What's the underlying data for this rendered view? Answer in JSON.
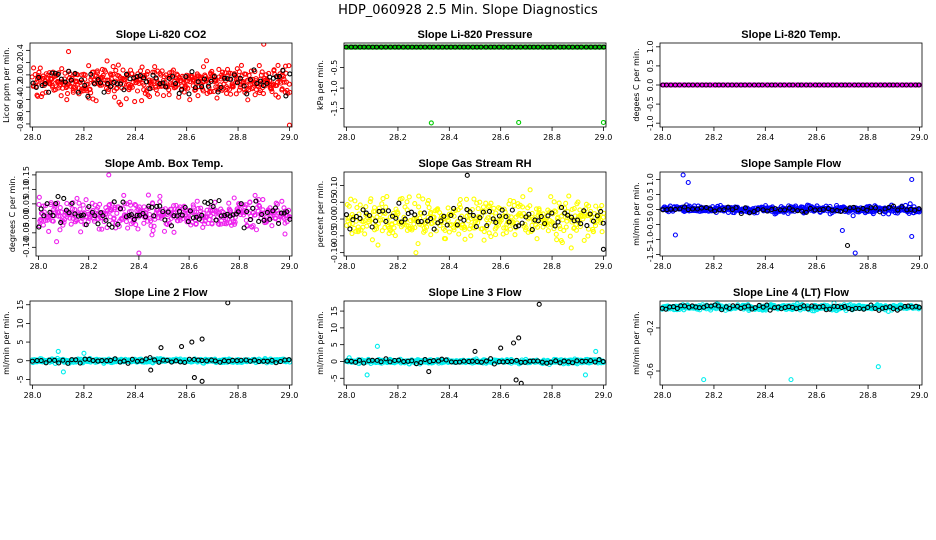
{
  "title": "HDP_060928  2.5 Min. Slope Diagnostics",
  "chart_data": [
    {
      "id": "co2",
      "type": "scatter",
      "title": "Slope Li-820 CO2",
      "ylabel": "Licor ppm per min.",
      "xlim": [
        27.99,
        29.01
      ],
      "ylim": [
        -0.85,
        0.52
      ],
      "xticks": [
        28.0,
        28.2,
        28.4,
        28.6,
        28.8,
        29.0
      ],
      "xtick_labels": [
        "28.0",
        "28.2",
        "28.4",
        "28.6",
        "28.8",
        "29.0"
      ],
      "yticks": [
        -0.8,
        -0.6,
        -0.4,
        -0.2,
        0.0,
        0.2,
        0.4
      ],
      "ytick_labels": [
        "-0.8",
        "-0.6",
        "-0.4",
        "-0.2",
        "0.0",
        "0.2",
        "0.4"
      ],
      "primary_color": "#ff0000",
      "secondary_color": "#000000",
      "x_start": 28.0,
      "x_end": 29.0,
      "primary_count": 480,
      "secondary_count": 80,
      "primary_center": -0.12,
      "primary_spread": 0.38,
      "secondary_center": -0.12,
      "secondary_spread": 0.3,
      "primary_outliers": [
        [
          28.14,
          0.38
        ],
        [
          29.0,
          -0.82
        ],
        [
          28.9,
          0.5
        ]
      ],
      "secondary_outliers": []
    },
    {
      "id": "pressure",
      "type": "scatter",
      "title": "Slope Li-820 Pressure",
      "ylabel": "kPa per min.",
      "xlim": [
        27.99,
        29.01
      ],
      "ylim": [
        -1.95,
        0.1
      ],
      "xticks": [
        28.0,
        28.2,
        28.4,
        28.6,
        28.8,
        29.0
      ],
      "xtick_labels": [
        "28.0",
        "28.2",
        "28.4",
        "28.6",
        "28.8",
        "29.0"
      ],
      "yticks": [
        -1.5,
        -1.0,
        -0.5
      ],
      "ytick_labels": [
        "-1.5",
        "-1.0",
        "-0.5"
      ],
      "primary_color": "#00cc00",
      "secondary_color": "#000000",
      "x_start": 28.0,
      "x_end": 29.0,
      "primary_count": 400,
      "secondary_count": 60,
      "primary_center": 0.0,
      "primary_spread": 0.0,
      "secondary_center": 0.0,
      "secondary_spread": 0.0,
      "primary_outliers": [
        [
          28.33,
          -1.85
        ],
        [
          28.67,
          -1.84
        ],
        [
          29.0,
          -1.84
        ]
      ],
      "secondary_outliers": []
    },
    {
      "id": "temp",
      "type": "scatter",
      "title": "Slope Li-820 Temp.",
      "ylabel": "degees C per min.",
      "xlim": [
        27.99,
        29.01
      ],
      "ylim": [
        -1.1,
        1.1
      ],
      "xticks": [
        28.0,
        28.2,
        28.4,
        28.6,
        28.8,
        29.0
      ],
      "xtick_labels": [
        "28.0",
        "28.2",
        "28.4",
        "28.6",
        "28.8",
        "29.0"
      ],
      "yticks": [
        -1.0,
        -0.5,
        0.0,
        0.5,
        1.0
      ],
      "ytick_labels": [
        "-1.0",
        "-0.5",
        "0.0",
        "0.5",
        "1.0"
      ],
      "primary_color": "#ff00ff",
      "secondary_color": "#000000",
      "x_start": 28.0,
      "x_end": 29.0,
      "primary_count": 400,
      "secondary_count": 60,
      "primary_center": 0.0,
      "primary_spread": 0.0,
      "secondary_center": 0.0,
      "secondary_spread": 0.0,
      "primary_outliers": [],
      "secondary_outliers": []
    },
    {
      "id": "ambbox",
      "type": "scatter",
      "title": "Slope Amb. Box Temp.",
      "ylabel": "degrees C per min.",
      "xlim": [
        27.99,
        29.01
      ],
      "ylim": [
        -0.13,
        0.16
      ],
      "xticks": [
        28.0,
        28.2,
        28.4,
        28.6,
        28.8,
        29.0
      ],
      "xtick_labels": [
        "28.0",
        "28.2",
        "28.4",
        "28.6",
        "28.8",
        "29.0"
      ],
      "yticks": [
        -0.1,
        -0.05,
        0.0,
        0.05,
        0.1,
        0.15
      ],
      "ytick_labels": [
        "-0.10",
        "-0.05",
        "0.00",
        "0.05",
        "0.10",
        "0.15"
      ],
      "primary_color": "#ee22ee",
      "secondary_color": "#000000",
      "x_start": 28.0,
      "x_end": 29.0,
      "primary_count": 420,
      "secondary_count": 90,
      "primary_center": 0.015,
      "primary_spread": 0.08,
      "secondary_center": 0.015,
      "secondary_spread": 0.07,
      "primary_outliers": [
        [
          28.28,
          0.15
        ],
        [
          28.4,
          -0.12
        ]
      ],
      "secondary_outliers": []
    },
    {
      "id": "rh",
      "type": "scatter",
      "title": "Slope Gas Stream RH",
      "ylabel": "percent per min.",
      "xlim": [
        27.99,
        29.01
      ],
      "ylim": [
        -0.11,
        0.14
      ],
      "xticks": [
        28.0,
        28.2,
        28.4,
        28.6,
        28.8,
        29.0
      ],
      "xtick_labels": [
        "28.0",
        "28.2",
        "28.4",
        "28.6",
        "28.8",
        "29.0"
      ],
      "yticks": [
        -0.1,
        -0.05,
        0.0,
        0.05,
        0.1
      ],
      "ytick_labels": [
        "-0.10",
        "-0.05",
        "0.00",
        "0.05",
        "0.10"
      ],
      "primary_color": "#ffff00",
      "secondary_color": "#000000",
      "x_start": 28.0,
      "x_end": 29.0,
      "primary_count": 420,
      "secondary_count": 80,
      "primary_center": 0.0,
      "primary_spread": 0.09,
      "secondary_center": 0.0,
      "secondary_spread": 0.07,
      "primary_outliers": [
        [
          28.27,
          -0.1
        ]
      ],
      "secondary_outliers": [
        [
          28.47,
          0.13
        ],
        [
          29.0,
          -0.09
        ]
      ]
    },
    {
      "id": "sampleflow",
      "type": "scatter",
      "title": "Slope Sample Flow",
      "ylabel": "ml/min per min.",
      "xlim": [
        27.99,
        29.01
      ],
      "ylim": [
        -1.55,
        1.25
      ],
      "xticks": [
        28.0,
        28.2,
        28.4,
        28.6,
        28.8,
        29.0
      ],
      "xtick_labels": [
        "28.0",
        "28.2",
        "28.4",
        "28.6",
        "28.8",
        "29.0"
      ],
      "yticks": [
        -1.5,
        -1.0,
        -0.5,
        0.0,
        0.5,
        1.0
      ],
      "ytick_labels": [
        "-1.5",
        "-1.0",
        "-0.5",
        "0.0",
        "0.5",
        "1.0"
      ],
      "primary_color": "#0000ff",
      "secondary_color": "#000000",
      "x_start": 28.0,
      "x_end": 29.0,
      "primary_count": 420,
      "secondary_count": 60,
      "primary_center": 0.0,
      "primary_spread": 0.18,
      "secondary_center": 0.0,
      "secondary_spread": 0.15,
      "primary_outliers": [
        [
          28.08,
          1.15
        ],
        [
          28.1,
          0.9
        ],
        [
          28.75,
          -1.45
        ],
        [
          28.97,
          1.0
        ],
        [
          28.97,
          -0.9
        ],
        [
          28.7,
          -0.7
        ],
        [
          28.05,
          -0.85
        ]
      ],
      "secondary_outliers": [
        [
          28.72,
          -1.2
        ]
      ]
    },
    {
      "id": "line2",
      "type": "scatter",
      "title": "Slope Line 2 Flow",
      "ylabel": "ml/min per min.",
      "xlim": [
        27.99,
        29.01
      ],
      "ylim": [
        -6.5,
        16
      ],
      "xticks": [
        28.0,
        28.2,
        28.4,
        28.6,
        28.8,
        29.0
      ],
      "xtick_labels": [
        "28.0",
        "28.2",
        "28.4",
        "28.6",
        "28.8",
        "29.0"
      ],
      "yticks": [
        -5,
        0,
        5,
        10,
        15
      ],
      "ytick_labels": [
        "-5",
        "0",
        "5",
        "10",
        "15"
      ],
      "primary_color": "#00eeee",
      "secondary_color": "#000000",
      "x_start": 28.0,
      "x_end": 29.0,
      "primary_count": 420,
      "secondary_count": 60,
      "primary_center": 0.0,
      "primary_spread": 0.8,
      "secondary_center": 0.0,
      "secondary_spread": 1.0,
      "primary_outliers": [
        [
          28.1,
          2.5
        ],
        [
          28.12,
          -3.0
        ],
        [
          28.2,
          2.0
        ]
      ],
      "secondary_outliers": [
        [
          28.5,
          3.5
        ],
        [
          28.58,
          3.8
        ],
        [
          28.62,
          5.0
        ],
        [
          28.66,
          5.8
        ],
        [
          28.63,
          -4.5
        ],
        [
          28.66,
          -5.5
        ],
        [
          28.76,
          15.5
        ],
        [
          28.46,
          -2.5
        ]
      ]
    },
    {
      "id": "line3",
      "type": "scatter",
      "title": "Slope Line 3 Flow",
      "ylabel": "ml/min per min.",
      "xlim": [
        27.99,
        29.01
      ],
      "ylim": [
        -7,
        18
      ],
      "xticks": [
        28.0,
        28.2,
        28.4,
        28.6,
        28.8,
        29.0
      ],
      "xtick_labels": [
        "28.0",
        "28.2",
        "28.4",
        "28.6",
        "28.8",
        "29.0"
      ],
      "yticks": [
        -5,
        0,
        5,
        10,
        15
      ],
      "ytick_labels": [
        "-5",
        "0",
        "5",
        "10",
        "15"
      ],
      "primary_color": "#00eeee",
      "secondary_color": "#000000",
      "x_start": 28.0,
      "x_end": 29.0,
      "primary_count": 420,
      "secondary_count": 60,
      "primary_center": 0.0,
      "primary_spread": 0.9,
      "secondary_center": 0.0,
      "secondary_spread": 1.0,
      "primary_outliers": [
        [
          28.08,
          -4.0
        ],
        [
          28.12,
          4.5
        ],
        [
          28.93,
          -4.0
        ],
        [
          28.97,
          3.0
        ]
      ],
      "secondary_outliers": [
        [
          28.5,
          3.0
        ],
        [
          28.6,
          4.0
        ],
        [
          28.65,
          5.5
        ],
        [
          28.67,
          7.0
        ],
        [
          28.66,
          -5.5
        ],
        [
          28.68,
          -6.5
        ],
        [
          28.75,
          17.0
        ],
        [
          28.32,
          -3.0
        ]
      ]
    },
    {
      "id": "line4",
      "type": "scatter",
      "title": "Slope Line 4 (LT) Flow",
      "ylabel": "ml/min per min.",
      "xlim": [
        27.99,
        29.01
      ],
      "ylim": [
        -0.73,
        0.05
      ],
      "xticks": [
        28.0,
        28.2,
        28.4,
        28.6,
        28.8,
        29.0
      ],
      "xtick_labels": [
        "28.0",
        "28.2",
        "28.4",
        "28.6",
        "28.8",
        "29.0"
      ],
      "yticks": [
        -0.6,
        -0.2
      ],
      "ytick_labels": [
        "-0.6",
        "-0.2"
      ],
      "primary_color": "#00eeee",
      "secondary_color": "#000000",
      "x_start": 28.0,
      "x_end": 29.0,
      "primary_count": 420,
      "secondary_count": 70,
      "primary_center": -0.01,
      "primary_spread": 0.04,
      "secondary_center": -0.01,
      "secondary_spread": 0.03,
      "primary_outliers": [
        [
          28.16,
          -0.68
        ],
        [
          28.5,
          -0.68
        ],
        [
          28.84,
          -0.56
        ]
      ],
      "secondary_outliers": []
    }
  ]
}
